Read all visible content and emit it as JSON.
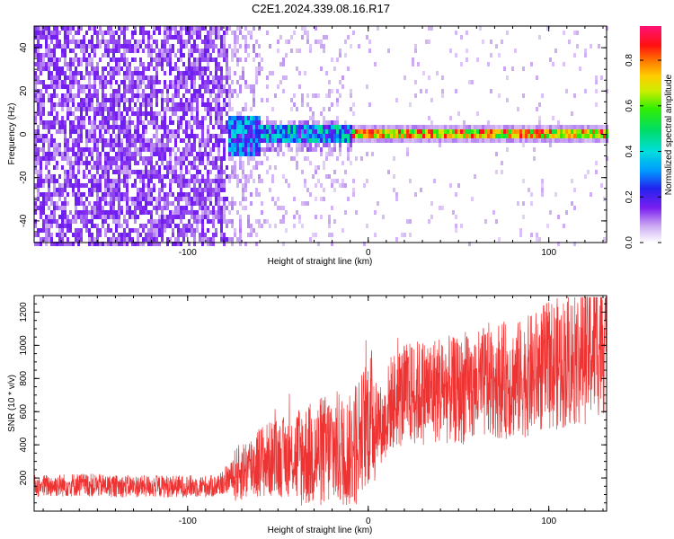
{
  "title": "C2E1.2024.339.08.16.R17",
  "colors": {
    "background": "#ffffff",
    "frame": "#000000",
    "snr_line": "#ee3333"
  },
  "chart_data": [
    {
      "type": "heatmap",
      "xlabel": "Height of straight line (km)",
      "ylabel": "Frequency (Hz)",
      "xlim": [
        -185,
        132
      ],
      "ylim": [
        -50,
        50
      ],
      "xticks": [
        "-100",
        "0",
        "100"
      ],
      "yticks": [
        "-40",
        "-20",
        "0",
        "20",
        "40"
      ],
      "colorbar": {
        "label": "Normalized spectral amplitude",
        "range": [
          0,
          0.95
        ],
        "ticks": [
          "0.0",
          "0.2",
          "0.4",
          "0.6",
          "0.8"
        ],
        "colormap": "white-purple-blue-cyan-green-yellow-orange-red-magenta"
      },
      "regions": [
        {
          "x": [
            -185,
            -78
          ],
          "frequency": [
            -50,
            50
          ],
          "amplitude": "about 0.05 to 0.15, broadband noise"
        },
        {
          "x": [
            -78,
            -10
          ],
          "frequency": [
            -10,
            8
          ],
          "amplitude": "about 0.1 to 0.4, signal emerging near 0 Hz"
        },
        {
          "x": [
            -10,
            132
          ],
          "frequency": [
            -2,
            3
          ],
          "amplitude": "about 0.5 to 0.9, narrow band near 0 Hz"
        }
      ]
    },
    {
      "type": "line",
      "xlabel": "Height of straight line (km)",
      "ylabel": "SNR (10 * v/v)",
      "xlim": [
        -185,
        132
      ],
      "ylim": [
        0,
        1300
      ],
      "xticks": [
        "-100",
        "0",
        "100"
      ],
      "yticks": [
        "200",
        "400",
        "600",
        "800",
        "1000",
        "1200"
      ],
      "series": [
        {
          "x": [
            -185,
            -160,
            -140,
            -120,
            -100,
            -85,
            -75,
            -60,
            -45,
            -30,
            -20,
            -10,
            -5,
            0,
            5,
            8,
            12,
            20,
            30,
            40,
            50,
            60,
            70,
            80,
            90,
            100,
            110,
            120,
            130
          ],
          "y": [
            150,
            160,
            150,
            150,
            150,
            150,
            210,
            300,
            330,
            340,
            380,
            360,
            450,
            560,
            580,
            500,
            650,
            700,
            720,
            740,
            720,
            750,
            800,
            780,
            820,
            880,
            900,
            950,
            1050
          ]
        }
      ]
    }
  ]
}
